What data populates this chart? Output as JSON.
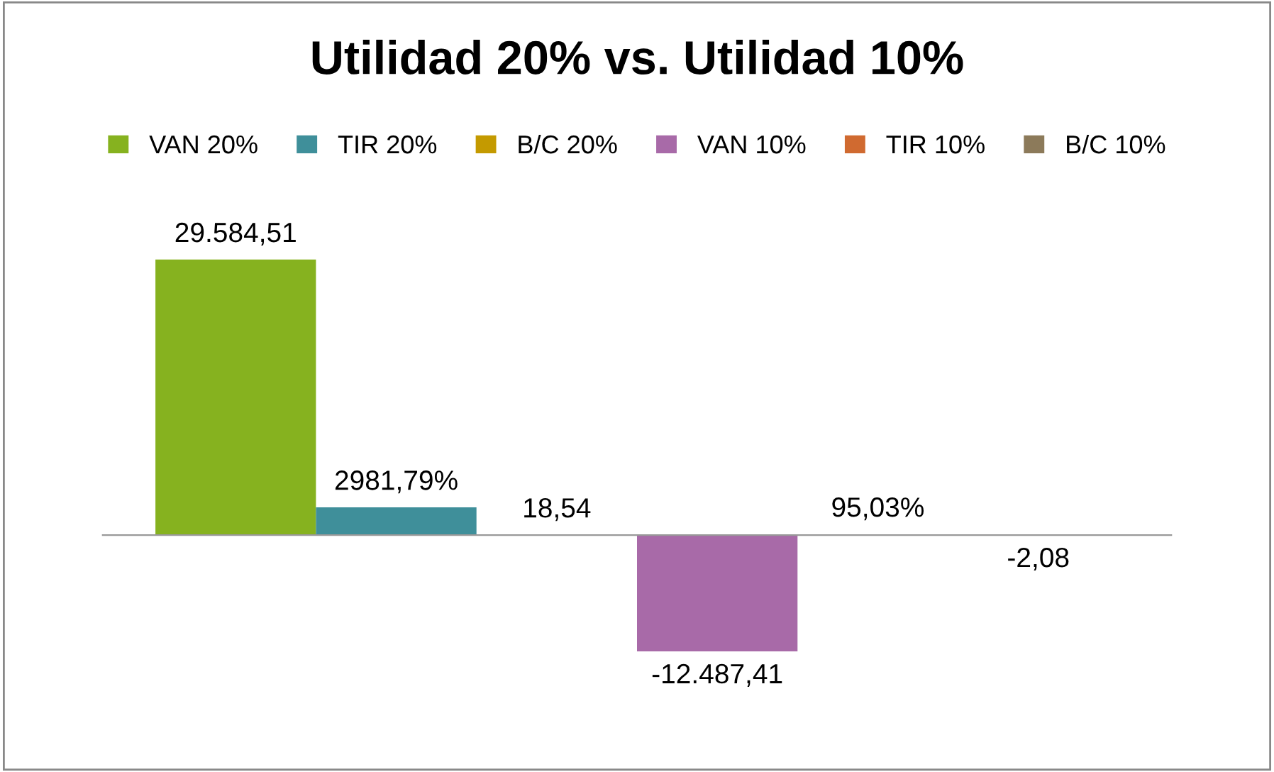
{
  "chart_data": {
    "type": "bar",
    "title": "Utilidad 20% vs. Utilidad 10%",
    "categories": [
      null
    ],
    "series": [
      {
        "name": "VAN 20%",
        "color": "#86b21f",
        "values": [
          29584.51
        ],
        "value_labels": [
          "29.584,51"
        ]
      },
      {
        "name": "TIR 20%",
        "color": "#3f8f9a",
        "values": [
          2981.79
        ],
        "value_labels": [
          "2981,79%"
        ]
      },
      {
        "name": "B/C 20%",
        "color": "#c49a00",
        "values": [
          18.54
        ],
        "value_labels": [
          "18,54"
        ]
      },
      {
        "name": "VAN 10%",
        "color": "#a86aa8",
        "values": [
          -12487.41
        ],
        "value_labels": [
          "-12.487,41"
        ]
      },
      {
        "name": "TIR 10%",
        "color": "#d06a30",
        "values": [
          95.03
        ],
        "value_labels": [
          "95,03%"
        ]
      },
      {
        "name": "B/C 10%",
        "color": "#8c7a5a",
        "values": [
          -2.08
        ],
        "value_labels": [
          "-2,08"
        ]
      }
    ],
    "legend": "top",
    "grid": false
  }
}
